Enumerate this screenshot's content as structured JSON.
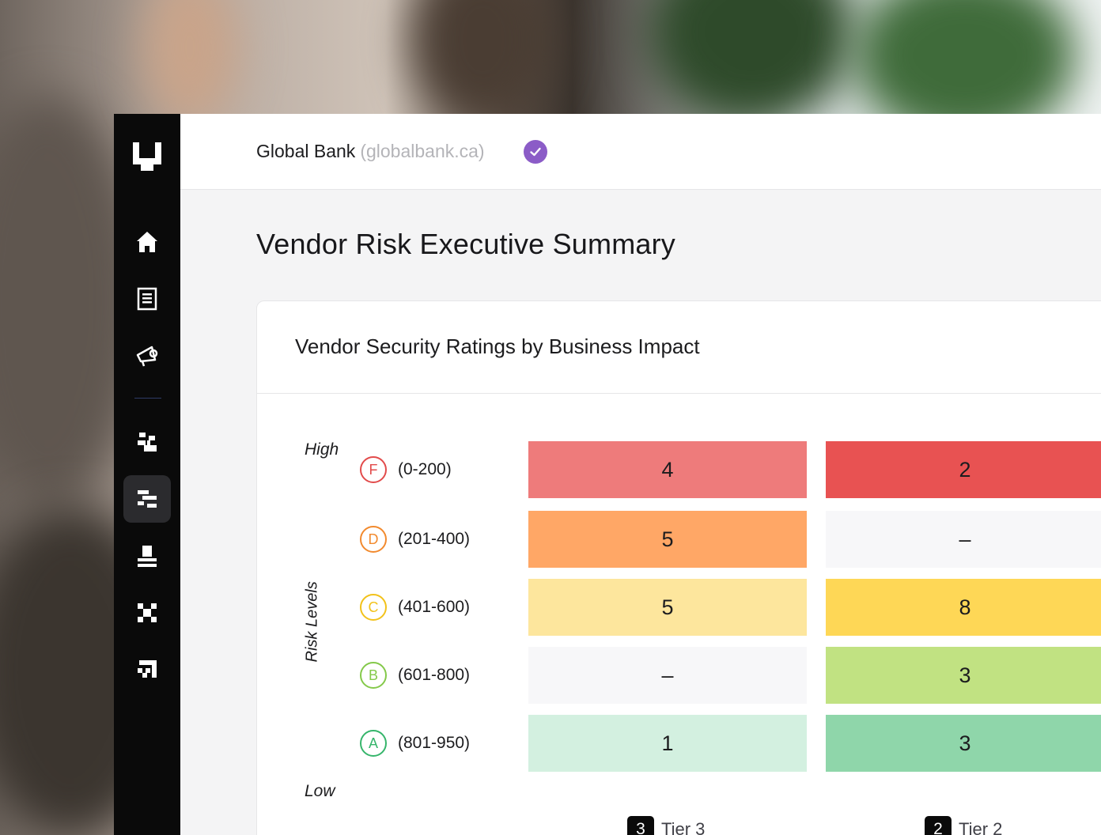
{
  "header": {
    "org_name": "Global Bank",
    "org_domain": "(globalbank.ca)",
    "verified_icon": "check-circle-icon",
    "verified_color": "#8b5cc7"
  },
  "page": {
    "title": "Vendor Risk Executive Summary"
  },
  "sidebar": {
    "items": [
      {
        "icon": "logo-icon"
      },
      {
        "icon": "home-icon"
      },
      {
        "icon": "document-icon"
      },
      {
        "icon": "megaphone-icon"
      },
      {
        "icon": "pixel-grid-icon"
      },
      {
        "icon": "hierarchy-icon",
        "active": true
      },
      {
        "icon": "stamp-icon"
      },
      {
        "icon": "cross-pattern-icon"
      },
      {
        "icon": "arrow-up-right-icon"
      }
    ]
  },
  "card": {
    "title": "Vendor Security Ratings by Business Impact",
    "axis_high": "High",
    "axis_low": "Low",
    "axis_label": "Risk Levels",
    "grades": [
      {
        "letter": "F",
        "range": "(0-200)",
        "color": "#e24b4b"
      },
      {
        "letter": "D",
        "range": "(201-400)",
        "color": "#f28a2e"
      },
      {
        "letter": "C",
        "range": "(401-600)",
        "color": "#f2c21b"
      },
      {
        "letter": "B",
        "range": "(601-800)",
        "color": "#84c94a"
      },
      {
        "letter": "A",
        "range": "(801-950)",
        "color": "#36b56b"
      }
    ],
    "tiers": [
      {
        "number": "3",
        "label": "Tier 3",
        "cells": [
          {
            "value": "4",
            "color": "#ee7b7b"
          },
          {
            "value": "5",
            "color": "#ffa766"
          },
          {
            "value": "5",
            "color": "#fde69d"
          },
          {
            "value": "–",
            "color": "#f7f7f9"
          },
          {
            "value": "1",
            "color": "#d3f0e0"
          }
        ]
      },
      {
        "number": "2",
        "label": "Tier 2",
        "cells": [
          {
            "value": "2",
            "color": "#e85252"
          },
          {
            "value": "–",
            "color": "#f7f7f9"
          },
          {
            "value": "8",
            "color": "#fed756"
          },
          {
            "value": "3",
            "color": "#c1e282"
          },
          {
            "value": "3",
            "color": "#8fd6aa"
          }
        ]
      }
    ]
  }
}
